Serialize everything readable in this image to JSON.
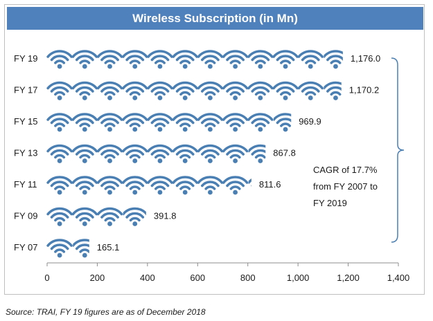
{
  "colors": {
    "accent": "#4f81bd",
    "icon": "#4a7fb3"
  },
  "icon_name": "wifi-icon",
  "source_note": "Source: TRAI, FY 19 figures are as of December 2018",
  "annotation": [
    "CAGR of 17.7%",
    "from FY 2007 to",
    "FY 2019"
  ],
  "chart_data": {
    "type": "bar",
    "title": "Wireless Subscription (in Mn)",
    "xlabel": "",
    "ylabel": "",
    "categories": [
      "FY 19",
      "FY 17",
      "FY 15",
      "FY 13",
      "FY 11",
      "FY 09",
      "FY 07"
    ],
    "values": [
      1176.0,
      1170.2,
      969.9,
      867.8,
      811.6,
      391.8,
      165.1
    ],
    "value_labels": [
      "1,176.0",
      "1,170.2",
      "969.9",
      "867.8",
      "811.6",
      "391.8",
      "165.1"
    ],
    "xlim": [
      0,
      1400
    ],
    "xticks": [
      0,
      200,
      400,
      600,
      800,
      1000,
      1200,
      1400
    ],
    "xtick_labels": [
      "0",
      "200",
      "400",
      "600",
      "800",
      "1,000",
      "1,200",
      "1,400"
    ],
    "units_per_icon": 100,
    "grid": false,
    "orientation": "horizontal"
  }
}
